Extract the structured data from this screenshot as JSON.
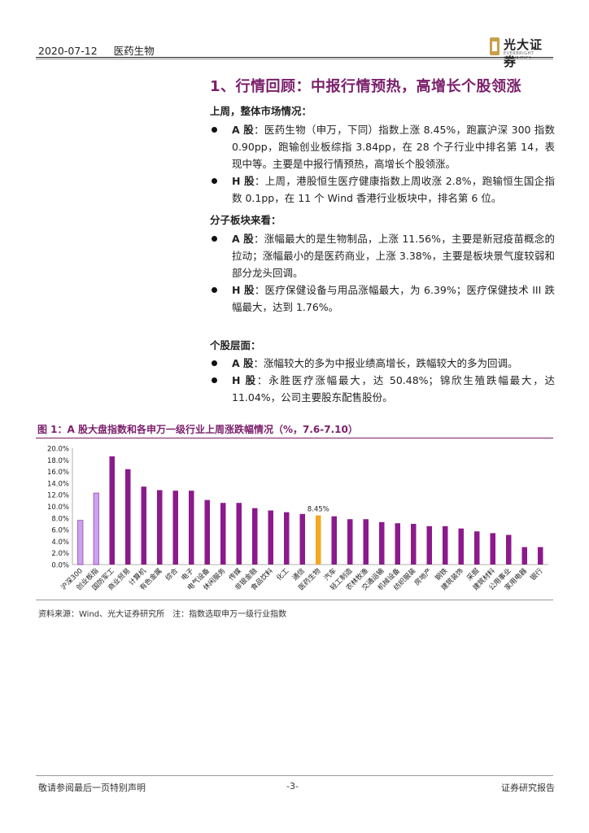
{
  "header": {
    "date": "2020-07-12",
    "sector": "医药生物",
    "logo_name": "光大证券",
    "logo_sub": "EVERBRIGHT SECURITIES"
  },
  "title": "1、行情回顾：中报行情预热，高增长个股领涨",
  "sections": [
    {
      "heading": "上周，整体市场情况：",
      "bullets": [
        {
          "lead": "A 股",
          "text": "：医药生物（申万，下同）指数上涨 8.45%，跑赢沪深 300 指数 0.90pp，跑输创业板综指 3.84pp，在 28 个子行业中排名第 14，表现中等。主要是中报行情预热，高增长个股领涨。"
        },
        {
          "lead": "H 股",
          "text": "：上周，港股恒生医疗健康指数上周收涨 2.8%，跑输恒生国企指数 0.1pp，在 11 个 Wind 香港行业板块中，排名第 6 位。"
        }
      ]
    },
    {
      "heading": "分子板块来看：",
      "bullets": [
        {
          "lead": "A 股",
          "text": "：涨幅最大的是生物制品，上涨 11.56%，主要是新冠疫苗概念的拉动；涨幅最小的是医药商业，上涨 3.38%，主要是板块景气度较弱和部分龙头回调。"
        },
        {
          "lead": "H 股",
          "text": "：医疗保健设备与用品涨幅最大，为 6.39%；医疗保健技术 III 跌幅最大，达到 1.76%。"
        }
      ]
    },
    {
      "heading": "个股层面：",
      "bullets": [
        {
          "lead": "A 股",
          "text": "：涨幅较大的多为中报业绩高增长，跌幅较大的多为回调。"
        },
        {
          "lead": "H 股",
          "text": "：永胜医疗涨幅最大，达 50.48%；锦欣生殖跌幅最大，达 11.04%，公司主要股东配售股份。"
        }
      ]
    }
  ],
  "figure": {
    "title": "图 1：A 股大盘指数和各申万一级行业上周涨跌幅情况（%，7.6-7.10）",
    "source": "资料来源：Wind、光大证券研究所　注：指数选取申万一级行业指数"
  },
  "chart_data": {
    "type": "bar",
    "categories": [
      "沪深300",
      "创业板指",
      "国防军工",
      "商业贸易",
      "计算机",
      "有色金属",
      "综合",
      "电子",
      "电气设备",
      "休闲服务",
      "传媒",
      "非银金融",
      "食品饮料",
      "化工",
      "通信",
      "医药生物",
      "汽车",
      "轻工制造",
      "农林牧渔",
      "交通运输",
      "机械设备",
      "纺织服装",
      "房地产",
      "钢铁",
      "建筑装饰",
      "采掘",
      "建筑材料",
      "公用事业",
      "家用电器",
      "银行"
    ],
    "values": [
      7.6,
      12.3,
      18.6,
      16.4,
      13.4,
      12.8,
      12.7,
      12.7,
      11.1,
      10.6,
      10.6,
      9.7,
      9.3,
      9.0,
      8.7,
      8.45,
      8.3,
      7.8,
      7.8,
      7.3,
      7.1,
      7.0,
      6.6,
      6.6,
      6.2,
      5.7,
      5.4,
      5.1,
      3.0,
      3.0
    ],
    "highlight": {
      "index": 15,
      "label": "8.45%"
    },
    "ylim": [
      0,
      20
    ],
    "yticks": [
      "0.0%",
      "2.0%",
      "4.0%",
      "6.0%",
      "8.0%",
      "10.0%",
      "12.0%",
      "14.0%",
      "16.0%",
      "18.0%",
      "20.0%"
    ],
    "colors": {
      "index": "#c7a3f0",
      "sector": "#8c1a8c",
      "highlight": "#f5a623"
    }
  },
  "footer": {
    "left": "敬请参阅最后一页特别声明",
    "center": "-3-",
    "right": "证券研究报告"
  }
}
